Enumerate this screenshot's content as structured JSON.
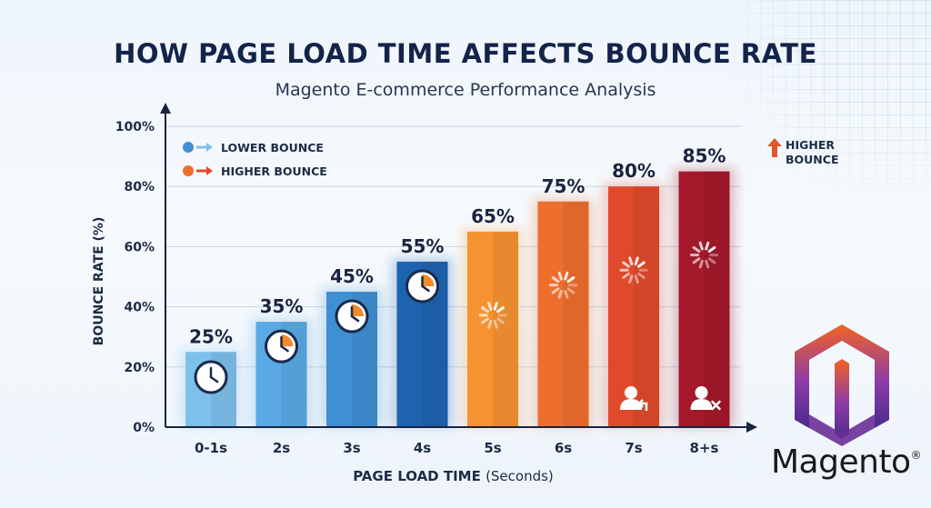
{
  "title": "HOW PAGE LOAD TIME AFFECTS BOUNCE RATE",
  "subtitle": "Magento E-commerce Performance Analysis",
  "legend": {
    "lower": "LOWER BOUNCE",
    "higher": "HIGHER BOUNCE",
    "annotation_line1": "HIGHER",
    "annotation_line2": "BOUNCE"
  },
  "brand": {
    "name": "Magento",
    "trademark": "®"
  },
  "colors": {
    "lower": [
      "#7ec0ec",
      "#3f8fd2",
      "#1e63b0"
    ],
    "higher": [
      "#f69232",
      "#ee6e2e",
      "#e04a2c",
      "#a3192a"
    ],
    "title": "#14234a",
    "logo": [
      "#f26322",
      "#8e3ca8",
      "#4a2a8c"
    ]
  },
  "chart_data": {
    "type": "bar",
    "categories": [
      "0-1s",
      "2s",
      "3s",
      "4s",
      "5s",
      "6s",
      "7s",
      "8+s"
    ],
    "values": [
      25,
      35,
      45,
      55,
      65,
      75,
      80,
      85
    ],
    "value_labels": [
      "25%",
      "35%",
      "45%",
      "55%",
      "65%",
      "75%",
      "80%",
      "85%"
    ],
    "xlabel": "PAGE LOAD TIME",
    "xlabel_unit": "(Seconds)",
    "ylabel": "BOUNCE RATE (%)",
    "ylim": [
      0,
      100
    ],
    "yticks": [
      0,
      20,
      40,
      60,
      80,
      100
    ],
    "ytick_labels": [
      "0%",
      "20%",
      "40%",
      "60%",
      "80%",
      "100%"
    ],
    "legend_placement": "top-left",
    "grid": true,
    "bar_icons": [
      "clock-icon",
      "clock-icon",
      "clock-icon",
      "clock-icon",
      "loading-spinner-icon",
      "loading-spinner-icon",
      "loading-spinner-icon",
      "loading-spinner-icon"
    ],
    "bar_bottom_icons": [
      "",
      "",
      "",
      "",
      "",
      "",
      "user-leaving-icon",
      "user-removed-icon"
    ]
  }
}
